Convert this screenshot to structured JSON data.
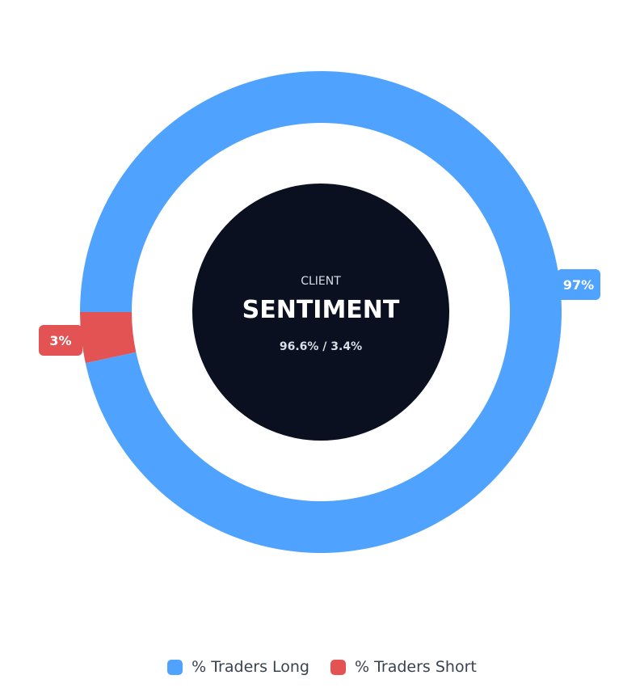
{
  "center": {
    "kicker": "CLIENT",
    "title": "SENTIMENT",
    "ratio": "96.6% / 3.4%"
  },
  "colors": {
    "long": "#4fa3fe",
    "short": "#e35353",
    "center_fill": "#0b1020",
    "center_text": "#ffffff"
  },
  "chart_data": {
    "type": "pie",
    "categories": [
      "% Traders Long",
      "% Traders Short"
    ],
    "values": [
      96.6,
      3.4
    ],
    "data_labels": [
      "97%",
      "3%"
    ],
    "legend_position": "bottom"
  },
  "legend": {
    "items": [
      {
        "label": "% Traders Long",
        "color": "#4fa3fe"
      },
      {
        "label": "% Traders Short",
        "color": "#e35353"
      }
    ]
  }
}
